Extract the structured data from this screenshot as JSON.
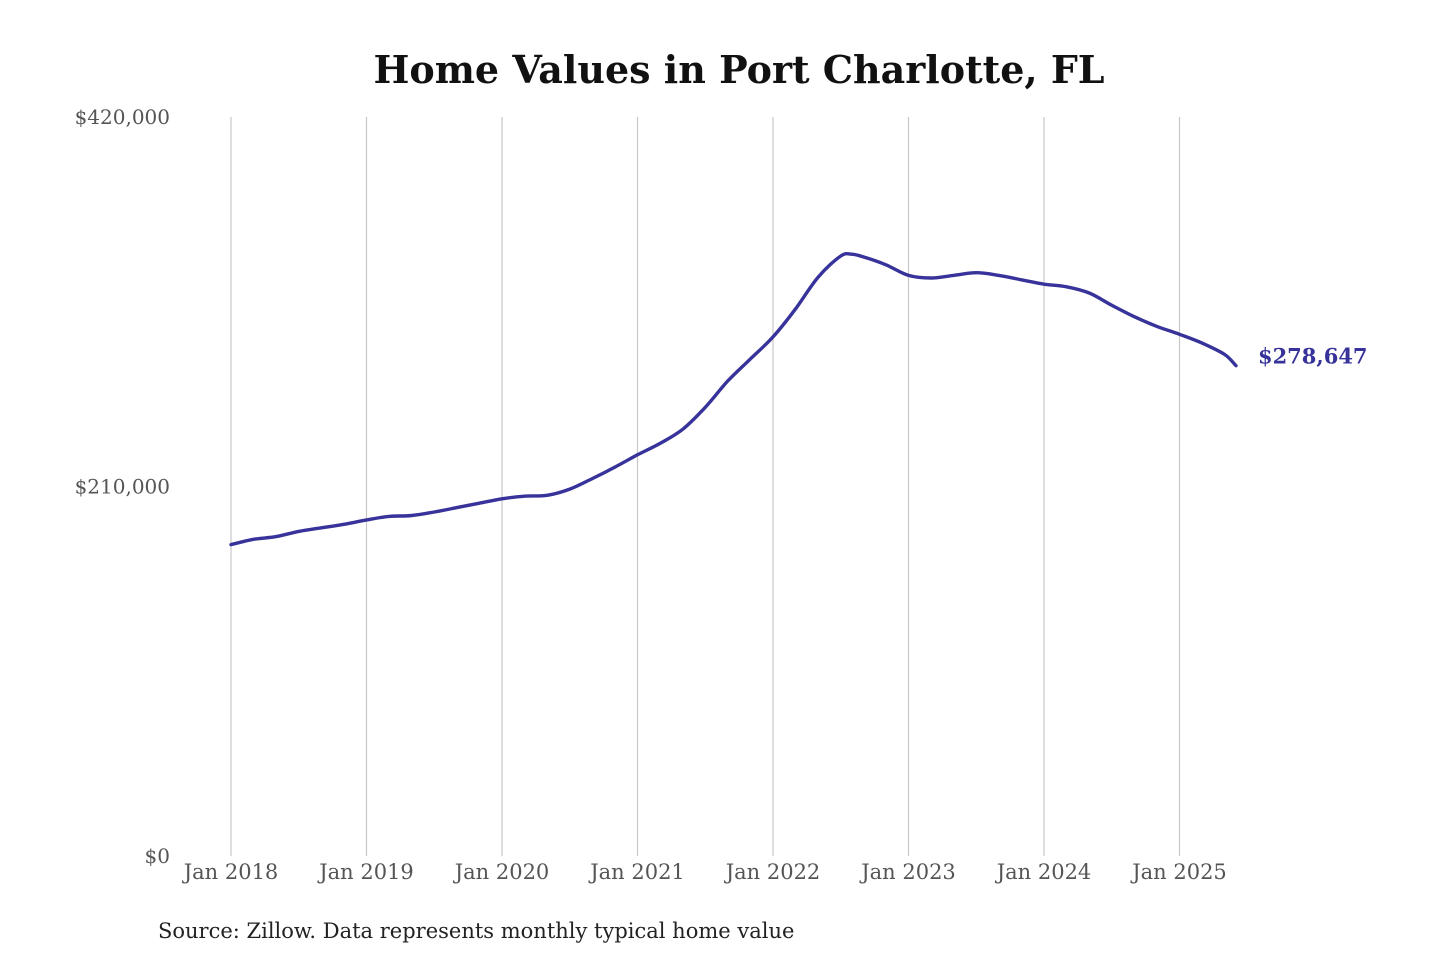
{
  "chart_data": {
    "type": "line",
    "title": "Home Values in Port Charlotte, FL",
    "xlabel": "",
    "ylabel": "",
    "ylim": [
      0,
      420000
    ],
    "y_ticks": [
      {
        "value": 420000,
        "label": "$420,000"
      },
      {
        "value": 210000,
        "label": "$210,000"
      },
      {
        "value": 0,
        "label": "$0"
      }
    ],
    "x_ticks": [
      "Jan 2018",
      "Jan 2019",
      "Jan 2020",
      "Jan 2021",
      "Jan 2022",
      "Jan 2023",
      "Jan 2024",
      "Jan 2025"
    ],
    "grid": "vertical",
    "line_color": "#37339a",
    "series": [
      {
        "x": [
          "2018-01",
          "2018-03",
          "2018-05",
          "2018-07",
          "2018-09",
          "2018-11",
          "2019-01",
          "2019-03",
          "2019-05",
          "2019-07",
          "2019-09",
          "2019-11",
          "2020-01",
          "2020-03",
          "2020-05",
          "2020-07",
          "2020-09",
          "2020-11",
          "2021-01",
          "2021-03",
          "2021-05",
          "2021-07",
          "2021-09",
          "2021-11",
          "2022-01",
          "2022-03",
          "2022-05",
          "2022-07",
          "2022-08",
          "2022-09",
          "2022-11",
          "2023-01",
          "2023-03",
          "2023-05",
          "2023-07",
          "2023-09",
          "2023-11",
          "2024-01",
          "2024-03",
          "2024-05",
          "2024-07",
          "2024-09",
          "2024-11",
          "2025-01",
          "2025-03",
          "2025-05",
          "2025-06"
        ],
        "values": [
          177000,
          180000,
          181500,
          184500,
          186500,
          188500,
          191000,
          193000,
          193500,
          195500,
          198000,
          200500,
          203000,
          204500,
          205000,
          208500,
          214500,
          221000,
          228000,
          234500,
          242500,
          255000,
          270000,
          282500,
          295000,
          311000,
          329000,
          341000,
          342000,
          340500,
          336000,
          330000,
          328500,
          330000,
          331500,
          330000,
          327500,
          325000,
          323500,
          320000,
          313000,
          306500,
          301000,
          296500,
          291500,
          285000,
          278647
        ]
      }
    ],
    "end_label": "$278,647"
  },
  "source_note": "Source: Zillow. Data represents monthly typical home value"
}
